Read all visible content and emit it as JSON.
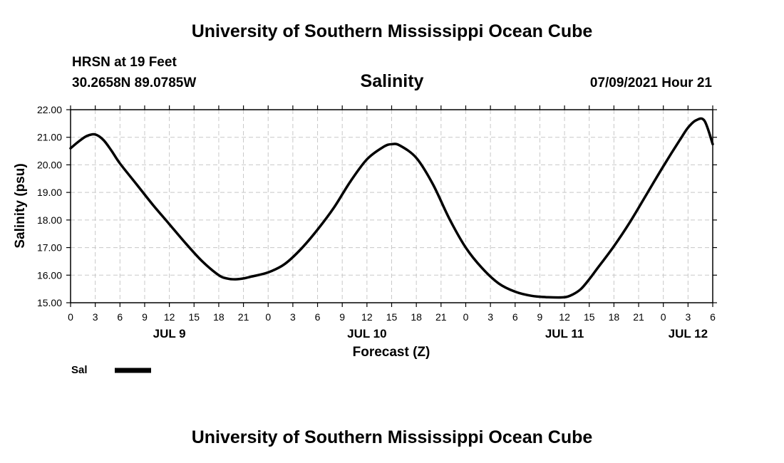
{
  "header": {
    "title": "University of Southern Mississippi Ocean Cube",
    "station_name": "HRSN at 19 Feet",
    "station_coords": "30.2658N  89.0785W",
    "run_time": "07/09/2021 Hour 21"
  },
  "footer": {
    "title": "University of Southern Mississippi Ocean Cube"
  },
  "chart_data": {
    "type": "line",
    "title": "Salinity",
    "xlabel": "Forecast (Z)",
    "ylabel": "Salinity (psu)",
    "ylim": [
      15.0,
      22.0
    ],
    "xlim_hours": [
      0,
      78
    ],
    "y_ticks": [
      "15.00",
      "16.00",
      "17.00",
      "18.00",
      "19.00",
      "20.00",
      "21.00",
      "22.00"
    ],
    "x_tick_labels": [
      "0",
      "3",
      "6",
      "9",
      "12",
      "15",
      "18",
      "21",
      "0",
      "3",
      "6",
      "9",
      "12",
      "15",
      "18",
      "21",
      "0",
      "3",
      "6",
      "9",
      "12",
      "15",
      "18",
      "21",
      "0",
      "3",
      "6"
    ],
    "day_labels": [
      {
        "label": "JUL 9",
        "hour": 12
      },
      {
        "label": "JUL 10",
        "hour": 36
      },
      {
        "label": "JUL 11",
        "hour": 60
      },
      {
        "label": "JUL 12",
        "hour": 75
      }
    ],
    "grid": true,
    "legend": {
      "position": "bottom-left",
      "entries": [
        {
          "name": "Sal",
          "color": "#000000"
        }
      ]
    },
    "series": [
      {
        "name": "Sal",
        "color": "#000000",
        "x_hours": [
          0,
          1,
          2,
          3,
          4,
          5,
          6,
          8,
          10,
          12,
          14,
          16,
          18,
          19,
          20,
          21,
          22,
          24,
          26,
          28,
          30,
          32,
          34,
          36,
          38,
          39,
          40,
          42,
          44,
          46,
          48,
          50,
          52,
          54,
          56,
          58,
          60,
          61,
          62,
          63,
          64,
          66,
          68,
          70,
          72,
          74,
          75,
          76,
          77,
          78
        ],
        "values": [
          20.6,
          20.85,
          21.05,
          21.1,
          20.9,
          20.5,
          20.05,
          19.3,
          18.55,
          17.85,
          17.15,
          16.5,
          16.0,
          15.88,
          15.85,
          15.88,
          15.95,
          16.1,
          16.4,
          16.95,
          17.65,
          18.45,
          19.4,
          20.2,
          20.65,
          20.75,
          20.7,
          20.25,
          19.3,
          18.05,
          17.0,
          16.25,
          15.7,
          15.4,
          15.25,
          15.2,
          15.2,
          15.3,
          15.5,
          15.85,
          16.25,
          17.05,
          17.95,
          18.95,
          19.95,
          20.9,
          21.35,
          21.62,
          21.6,
          20.75
        ]
      }
    ]
  }
}
